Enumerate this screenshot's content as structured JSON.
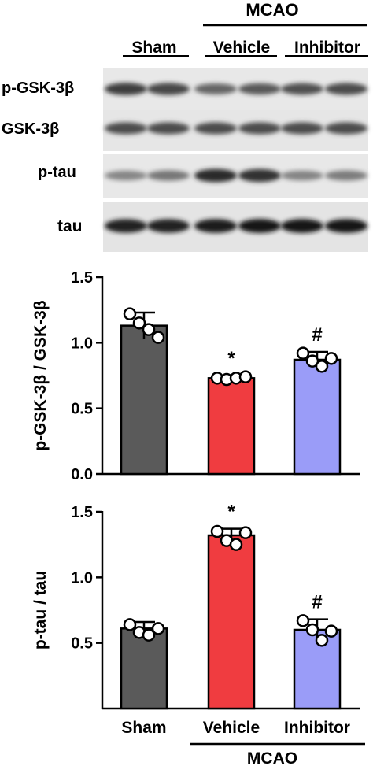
{
  "blot": {
    "mcao_label": "MCAO",
    "group_labels": [
      "Sham",
      "Vehicle",
      "Inhibitor"
    ],
    "rows": [
      {
        "label": "p-GSK-3β",
        "intensity": [
          0.78,
          0.74,
          0.6,
          0.66,
          0.7,
          0.72
        ]
      },
      {
        "label": "GSK-3β",
        "intensity": [
          0.72,
          0.72,
          0.72,
          0.72,
          0.72,
          0.72
        ]
      },
      {
        "label": "p-tau",
        "intensity": [
          0.45,
          0.52,
          0.88,
          0.84,
          0.46,
          0.5
        ]
      },
      {
        "label": "tau",
        "intensity": [
          0.92,
          0.92,
          0.95,
          0.97,
          0.97,
          0.96
        ]
      }
    ]
  },
  "chart_data": [
    {
      "type": "bar",
      "categories": [
        "Sham",
        "Vehicle",
        "Inhibitor"
      ],
      "ylabel": "p-GSK-3β / GSK-3β",
      "ylim": [
        0,
        1.5
      ],
      "yticks": [
        "0.0",
        "0.5",
        "1.0",
        "1.5"
      ],
      "values": [
        1.13,
        0.73,
        0.87
      ],
      "errors": [
        0.1,
        0.02,
        0.06
      ],
      "points": [
        [
          1.22,
          1.15,
          1.1,
          1.04
        ],
        [
          0.73,
          0.72,
          0.73,
          0.74
        ],
        [
          0.92,
          0.86,
          0.82,
          0.88
        ]
      ],
      "annotations": [
        "",
        "*",
        "#"
      ],
      "colors": [
        "#5a5a5a",
        "#f03c40",
        "#9a9cf8"
      ]
    },
    {
      "type": "bar",
      "categories": [
        "Sham",
        "Vehicle",
        "Inhibitor"
      ],
      "ylabel": "p-tau / tau",
      "ylim": [
        0,
        1.5
      ],
      "yticks": [
        "0.5",
        "1.0",
        "1.5"
      ],
      "values": [
        0.61,
        1.32,
        0.6
      ],
      "errors": [
        0.05,
        0.05,
        0.08
      ],
      "points": [
        [
          0.64,
          0.58,
          0.56,
          0.61
        ],
        [
          1.35,
          1.28,
          1.25,
          1.34
        ],
        [
          0.67,
          0.6,
          0.52,
          0.59
        ]
      ],
      "annotations": [
        "",
        "*",
        "#"
      ],
      "colors": [
        "#5a5a5a",
        "#f03c40",
        "#9a9cf8"
      ],
      "mcao_label": "MCAO"
    }
  ]
}
